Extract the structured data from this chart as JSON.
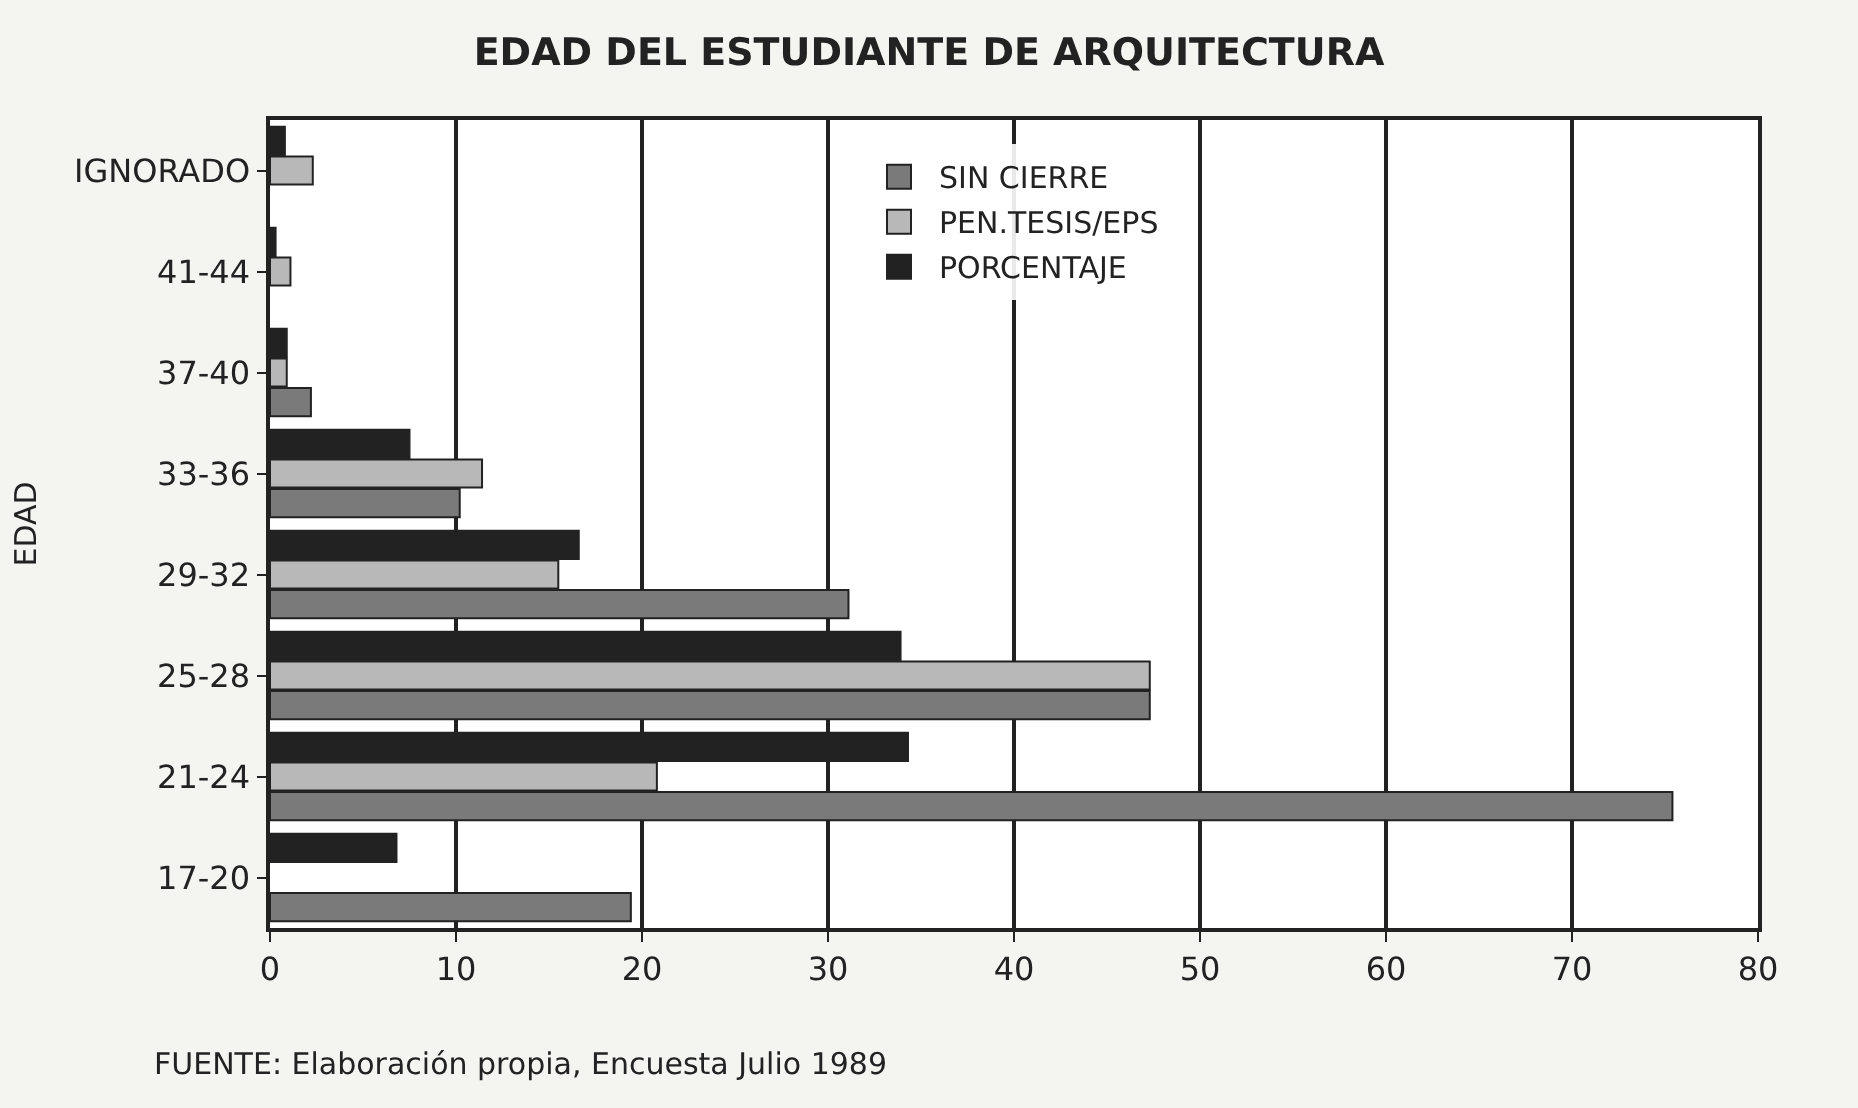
{
  "chart_data": {
    "type": "bar",
    "orientation": "horizontal",
    "title": "EDAD DEL ESTUDIANTE DE ARQUITECTURA",
    "ylabel": "EDAD",
    "categories": [
      "IGNORADO",
      "41-44",
      "37-40",
      "33-36",
      "29-32",
      "25-28",
      "21-24",
      "17-20"
    ],
    "series": [
      {
        "name": "SIN CIERRE",
        "color": "#7a7a7a",
        "values": [
          null,
          null,
          2.2,
          10.2,
          31.1,
          47.3,
          75.4,
          19.4
        ]
      },
      {
        "name": "PEN.TESIS/EPS",
        "color": "#b8b8b8",
        "values": [
          2.3,
          1.1,
          0.9,
          11.4,
          15.5,
          47.3,
          20.8,
          null
        ]
      },
      {
        "name": "PORCENTAJE",
        "color": "#222222",
        "values": [
          0.8,
          0.3,
          0.9,
          7.5,
          16.6,
          33.9,
          34.3,
          6.8
        ]
      }
    ],
    "xlim": [
      0,
      80
    ],
    "xticks": [
      0,
      10,
      20,
      30,
      40,
      50,
      60,
      70,
      80
    ],
    "grid": "x",
    "legend": "top",
    "annotations": [
      "FUENTE: Elaboración propia, Encuesta Julio 1989"
    ]
  }
}
